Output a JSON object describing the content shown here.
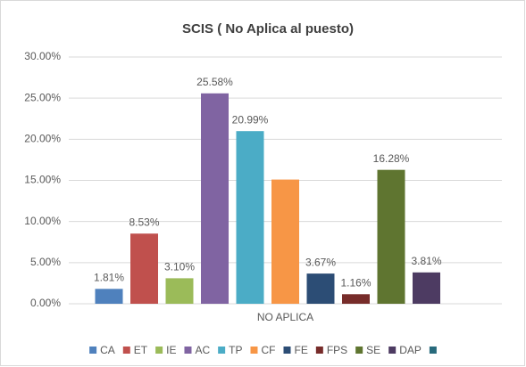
{
  "chart_data": {
    "type": "bar",
    "title": "SCIS ( No Aplica al puesto)",
    "categories": [
      "NO APLICA"
    ],
    "series": [
      {
        "name": "CA",
        "color": "#4f81bd",
        "values": [
          1.81
        ],
        "value_labels": [
          "1.81%"
        ]
      },
      {
        "name": "ET",
        "color": "#c0504d",
        "values": [
          8.53
        ],
        "value_labels": [
          "8.53%"
        ]
      },
      {
        "name": "IE",
        "color": "#9bbb59",
        "values": [
          3.1
        ],
        "value_labels": [
          "3.10%"
        ]
      },
      {
        "name": "AC",
        "color": "#8064a2",
        "values": [
          25.58
        ],
        "value_labels": [
          "25.58%"
        ]
      },
      {
        "name": "TP",
        "color": "#4bacc6",
        "values": [
          20.99
        ],
        "value_labels": [
          "20.99%"
        ]
      },
      {
        "name": "CF",
        "color": "#f79646",
        "values": [
          15.1
        ],
        "value_labels": [
          null
        ]
      },
      {
        "name": "FE",
        "color": "#2c4d75",
        "values": [
          3.67
        ],
        "value_labels": [
          "3.67%"
        ]
      },
      {
        "name": "FPS",
        "color": "#772c2a",
        "values": [
          1.16
        ],
        "value_labels": [
          "1.16%"
        ]
      },
      {
        "name": "SE",
        "color": "#5f7530",
        "values": [
          16.28
        ],
        "value_labels": [
          "16.28%"
        ]
      },
      {
        "name": "DAP",
        "color": "#4d3b62",
        "values": [
          3.81
        ],
        "value_labels": [
          "3.81%"
        ]
      },
      {
        "name": null,
        "color": "#276a7c",
        "values": [
          null
        ],
        "value_labels": [
          null
        ]
      }
    ],
    "ylim": [
      0,
      30
    ],
    "yticks": [
      {
        "value": 0,
        "label": "0.00%"
      },
      {
        "value": 5,
        "label": "5.00%"
      },
      {
        "value": 10,
        "label": "10.00%"
      },
      {
        "value": 15,
        "label": "15.00%"
      },
      {
        "value": 20,
        "label": "20.00%"
      },
      {
        "value": 25,
        "label": "25.00%"
      },
      {
        "value": 30,
        "label": "30.00%"
      }
    ],
    "grid": true,
    "legend": "bottom"
  }
}
